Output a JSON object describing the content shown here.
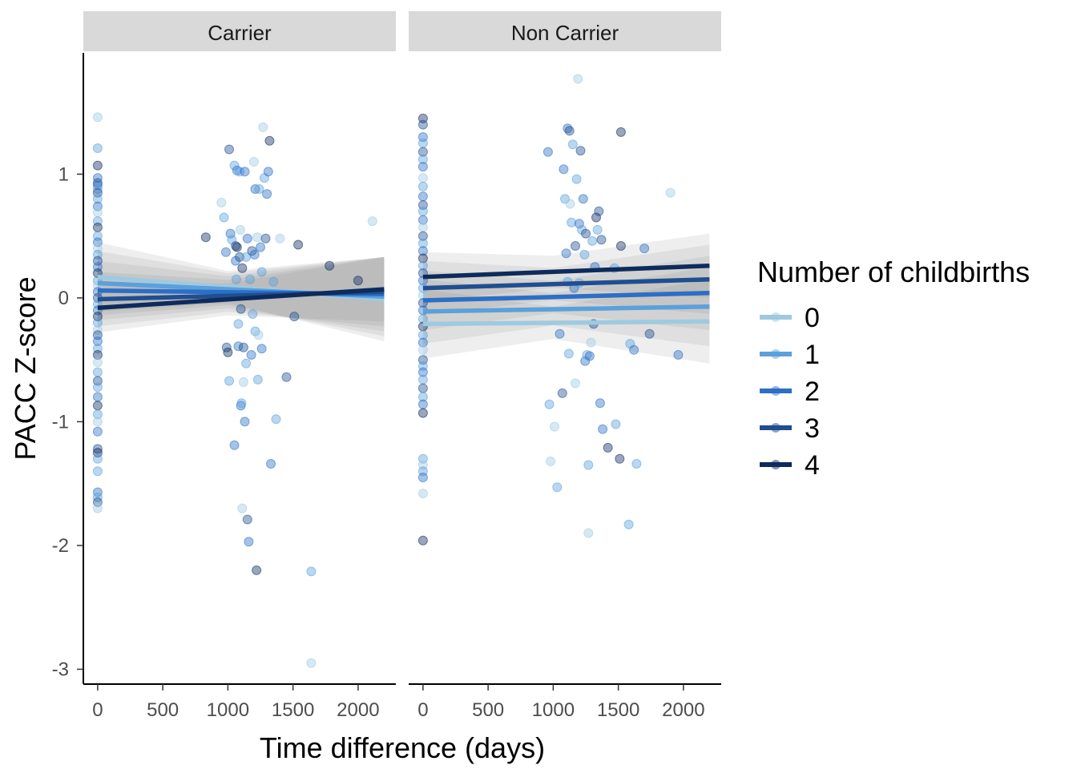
{
  "chart_data": {
    "type": "scatter",
    "xlabel": "Time difference (days)",
    "ylabel": "PACC Z-score",
    "xlim": [
      -110,
      2290
    ],
    "ylim": [
      -3.12,
      1.98
    ],
    "x_ticks": [
      0,
      500,
      1000,
      1500,
      2000
    ],
    "y_ticks": [
      1,
      0,
      -1,
      -2,
      -3
    ],
    "x_tick_labels": [
      "0",
      "500",
      "1000",
      "1500",
      "2000"
    ],
    "y_tick_labels": [
      "1",
      "0",
      "-1",
      "-2",
      "-3"
    ],
    "grid": false,
    "legend": {
      "title": "Number of childbirths",
      "position": "right",
      "entries": [
        "0",
        "1",
        "2",
        "3",
        "4"
      ]
    },
    "colors": [
      "#9ecae1",
      "#5aa0dc",
      "#2b6fc6",
      "#1f4e91",
      "#0d2b5c"
    ],
    "facets": [
      {
        "label": "Carrier",
        "lines": [
          {
            "group": "0",
            "x0": 0,
            "y0": 0.17,
            "x1": 2200,
            "y1": -0.01
          },
          {
            "group": "1",
            "x0": 0,
            "y0": 0.12,
            "x1": 2200,
            "y1": 0.01
          },
          {
            "group": "2",
            "x0": 0,
            "y0": 0.06,
            "x1": 2200,
            "y1": 0.03
          },
          {
            "group": "3",
            "x0": 0,
            "y0": -0.01,
            "x1": 2200,
            "y1": 0.05
          },
          {
            "group": "4",
            "x0": 0,
            "y0": -0.08,
            "x1": 2200,
            "y1": 0.07
          }
        ],
        "points": [
          [
            0,
            1.46,
            0
          ],
          [
            0,
            1.21,
            1
          ],
          [
            0,
            1.07,
            4
          ],
          [
            0,
            0.97,
            2
          ],
          [
            0,
            0.93,
            3
          ],
          [
            0,
            0.91,
            2
          ],
          [
            0,
            0.88,
            1
          ],
          [
            0,
            0.85,
            3
          ],
          [
            0,
            0.8,
            1
          ],
          [
            0,
            0.74,
            2
          ],
          [
            0,
            0.69,
            0
          ],
          [
            0,
            0.62,
            1
          ],
          [
            0,
            0.57,
            4
          ],
          [
            0,
            0.5,
            1
          ],
          [
            0,
            0.45,
            2
          ],
          [
            0,
            0.4,
            0
          ],
          [
            0,
            0.35,
            1
          ],
          [
            0,
            0.3,
            3
          ],
          [
            0,
            0.25,
            2
          ],
          [
            0,
            0.2,
            4
          ],
          [
            0,
            0.14,
            1
          ],
          [
            0,
            0.1,
            0
          ],
          [
            0,
            0.05,
            2
          ],
          [
            0,
            0.0,
            3
          ],
          [
            0,
            -0.05,
            1
          ],
          [
            0,
            -0.1,
            2
          ],
          [
            0,
            -0.15,
            4
          ],
          [
            0,
            -0.2,
            1
          ],
          [
            0,
            -0.26,
            0
          ],
          [
            0,
            -0.3,
            3
          ],
          [
            0,
            -0.35,
            2
          ],
          [
            0,
            -0.41,
            1
          ],
          [
            0,
            -0.46,
            4
          ],
          [
            0,
            -0.52,
            0
          ],
          [
            0,
            -0.6,
            1
          ],
          [
            0,
            -0.67,
            3
          ],
          [
            0,
            -0.72,
            1
          ],
          [
            0,
            -0.8,
            2
          ],
          [
            0,
            -0.87,
            4
          ],
          [
            0,
            -0.94,
            1
          ],
          [
            0,
            -1.0,
            0
          ],
          [
            0,
            -1.08,
            2
          ],
          [
            0,
            -1.22,
            3
          ],
          [
            0,
            -1.25,
            4
          ],
          [
            0,
            -1.3,
            1
          ],
          [
            0,
            -1.4,
            1
          ],
          [
            0,
            -1.57,
            2
          ],
          [
            0,
            -1.61,
            1
          ],
          [
            0,
            -1.65,
            3
          ],
          [
            0,
            -1.7,
            0
          ],
          [
            830,
            0.49,
            4
          ],
          [
            950,
            0.77,
            0
          ],
          [
            970,
            0.65,
            1
          ],
          [
            985,
            0.37,
            2
          ],
          [
            990,
            -0.4,
            3
          ],
          [
            1000,
            -0.44,
            4
          ],
          [
            1010,
            -0.67,
            1
          ],
          [
            1010,
            1.2,
            3
          ],
          [
            1020,
            0.52,
            2
          ],
          [
            1030,
            0.47,
            1
          ],
          [
            1050,
            1.07,
            1
          ],
          [
            1050,
            -1.19,
            2
          ],
          [
            1060,
            0.42,
            3
          ],
          [
            1060,
            0.3,
            2
          ],
          [
            1065,
            0.15,
            1
          ],
          [
            1070,
            1.03,
            2
          ],
          [
            1070,
            0.41,
            4
          ],
          [
            1080,
            -0.39,
            2
          ],
          [
            1080,
            -0.21,
            1
          ],
          [
            1090,
            1.02,
            1
          ],
          [
            1090,
            0.33,
            3
          ],
          [
            1095,
            0.55,
            0
          ],
          [
            1100,
            -0.87,
            2
          ],
          [
            1100,
            -0.09,
            3
          ],
          [
            1105,
            -0.85,
            1
          ],
          [
            1110,
            -1.7,
            0
          ],
          [
            1110,
            0.24,
            4
          ],
          [
            1120,
            -0.68,
            0
          ],
          [
            1120,
            -0.4,
            3
          ],
          [
            1130,
            1.02,
            2
          ],
          [
            1130,
            -1.0,
            2
          ],
          [
            1140,
            0.33,
            1
          ],
          [
            1140,
            -0.53,
            1
          ],
          [
            1150,
            -1.79,
            3
          ],
          [
            1150,
            0.48,
            2
          ],
          [
            1160,
            -1.97,
            2
          ],
          [
            1170,
            0.15,
            1
          ],
          [
            1180,
            -0.46,
            2
          ],
          [
            1185,
            0.38,
            3
          ],
          [
            1190,
            -0.13,
            1
          ],
          [
            1200,
            1.1,
            0
          ],
          [
            1205,
            0.35,
            2
          ],
          [
            1210,
            -0.27,
            1
          ],
          [
            1210,
            0.88,
            2
          ],
          [
            1220,
            -2.2,
            4
          ],
          [
            1225,
            0.49,
            0
          ],
          [
            1230,
            -0.66,
            1
          ],
          [
            1235,
            -0.3,
            0
          ],
          [
            1240,
            0.88,
            1
          ],
          [
            1250,
            0.41,
            2
          ],
          [
            1260,
            0.21,
            1
          ],
          [
            1260,
            -0.41,
            2
          ],
          [
            1270,
            1.38,
            0
          ],
          [
            1280,
            0.97,
            1
          ],
          [
            1290,
            0.48,
            3
          ],
          [
            1300,
            0.84,
            2
          ],
          [
            1310,
            1.02,
            2
          ],
          [
            1320,
            1.27,
            4
          ],
          [
            1330,
            -1.34,
            2
          ],
          [
            1350,
            0.13,
            1
          ],
          [
            1370,
            -0.98,
            1
          ],
          [
            1400,
            0.48,
            0
          ],
          [
            1450,
            -0.64,
            3
          ],
          [
            1510,
            -0.15,
            3
          ],
          [
            1540,
            0.43,
            4
          ],
          [
            1640,
            -2.21,
            1
          ],
          [
            1640,
            -2.95,
            0
          ],
          [
            1780,
            0.26,
            4
          ],
          [
            2000,
            0.14,
            4
          ],
          [
            2110,
            0.62,
            0
          ]
        ]
      },
      {
        "label": "Non Carrier",
        "lines": [
          {
            "group": "0",
            "x0": 0,
            "y0": -0.21,
            "x1": 2200,
            "y1": -0.19
          },
          {
            "group": "1",
            "x0": 0,
            "y0": -0.11,
            "x1": 2200,
            "y1": -0.07
          },
          {
            "group": "2",
            "x0": 0,
            "y0": -0.02,
            "x1": 2200,
            "y1": 0.04
          },
          {
            "group": "3",
            "x0": 0,
            "y0": 0.08,
            "x1": 2200,
            "y1": 0.15
          },
          {
            "group": "4",
            "x0": 0,
            "y0": 0.17,
            "x1": 2200,
            "y1": 0.26
          }
        ],
        "points": [
          [
            0,
            1.45,
            4
          ],
          [
            0,
            1.4,
            3
          ],
          [
            0,
            1.3,
            2
          ],
          [
            0,
            1.25,
            1
          ],
          [
            0,
            1.18,
            3
          ],
          [
            0,
            1.12,
            1
          ],
          [
            0,
            1.06,
            2
          ],
          [
            0,
            0.97,
            0
          ],
          [
            0,
            0.9,
            1
          ],
          [
            0,
            0.82,
            2
          ],
          [
            0,
            0.75,
            3
          ],
          [
            0,
            0.7,
            1
          ],
          [
            0,
            0.63,
            2
          ],
          [
            0,
            0.57,
            0
          ],
          [
            0,
            0.5,
            3
          ],
          [
            0,
            0.44,
            1
          ],
          [
            0,
            0.38,
            2
          ],
          [
            0,
            0.32,
            4
          ],
          [
            0,
            0.26,
            1
          ],
          [
            0,
            0.2,
            3
          ],
          [
            0,
            0.14,
            2
          ],
          [
            0,
            0.08,
            1
          ],
          [
            0,
            0.02,
            0
          ],
          [
            0,
            -0.04,
            3
          ],
          [
            0,
            -0.1,
            2
          ],
          [
            0,
            -0.17,
            1
          ],
          [
            0,
            -0.23,
            4
          ],
          [
            0,
            -0.3,
            1
          ],
          [
            0,
            -0.36,
            2
          ],
          [
            0,
            -0.42,
            0
          ],
          [
            0,
            -0.5,
            3
          ],
          [
            0,
            -0.55,
            1
          ],
          [
            0,
            -0.6,
            2
          ],
          [
            0,
            -0.66,
            1
          ],
          [
            0,
            -0.73,
            3
          ],
          [
            0,
            -0.8,
            1
          ],
          [
            0,
            -0.86,
            2
          ],
          [
            0,
            -0.93,
            4
          ],
          [
            0,
            -1.3,
            1
          ],
          [
            0,
            -1.35,
            0
          ],
          [
            0,
            -1.4,
            1
          ],
          [
            0,
            -1.45,
            2
          ],
          [
            0,
            -1.58,
            0
          ],
          [
            0,
            -1.96,
            4
          ],
          [
            960,
            1.18,
            2
          ],
          [
            970,
            -0.86,
            1
          ],
          [
            980,
            -1.32,
            0
          ],
          [
            1010,
            -1.04,
            0
          ],
          [
            1030,
            -1.53,
            1
          ],
          [
            1050,
            -0.29,
            2
          ],
          [
            1070,
            -0.77,
            3
          ],
          [
            1080,
            1.04,
            2
          ],
          [
            1090,
            0.8,
            1
          ],
          [
            1100,
            0.36,
            2
          ],
          [
            1110,
            0.13,
            1
          ],
          [
            1110,
            1.37,
            2
          ],
          [
            1120,
            -0.45,
            1
          ],
          [
            1125,
            1.35,
            3
          ],
          [
            1130,
            0.76,
            0
          ],
          [
            1140,
            0.61,
            1
          ],
          [
            1150,
            1.24,
            1
          ],
          [
            1160,
            0.08,
            2
          ],
          [
            1170,
            0.42,
            3
          ],
          [
            1170,
            -0.69,
            0
          ],
          [
            1180,
            0.96,
            1
          ],
          [
            1190,
            1.77,
            0
          ],
          [
            1200,
            0.6,
            2
          ],
          [
            1200,
            0.12,
            1
          ],
          [
            1210,
            1.19,
            3
          ],
          [
            1220,
            0.55,
            1
          ],
          [
            1230,
            0.8,
            2
          ],
          [
            1240,
            0.35,
            1
          ],
          [
            1245,
            -0.51,
            2
          ],
          [
            1250,
            0.52,
            3
          ],
          [
            1260,
            -0.46,
            1
          ],
          [
            1270,
            -1.35,
            1
          ],
          [
            1270,
            -1.9,
            0
          ],
          [
            1280,
            -0.47,
            2
          ],
          [
            1290,
            -0.36,
            0
          ],
          [
            1300,
            0.46,
            1
          ],
          [
            1310,
            -0.21,
            3
          ],
          [
            1320,
            0.25,
            2
          ],
          [
            1330,
            0.65,
            4
          ],
          [
            1340,
            0.55,
            1
          ],
          [
            1350,
            0.7,
            3
          ],
          [
            1360,
            -0.85,
            2
          ],
          [
            1370,
            0.47,
            3
          ],
          [
            1380,
            -1.06,
            2
          ],
          [
            1420,
            -1.21,
            4
          ],
          [
            1470,
            0.24,
            1
          ],
          [
            1480,
            -1.02,
            1
          ],
          [
            1510,
            -1.3,
            4
          ],
          [
            1520,
            0.42,
            4
          ],
          [
            1520,
            1.34,
            4
          ],
          [
            1580,
            -1.83,
            1
          ],
          [
            1590,
            -0.37,
            1
          ],
          [
            1620,
            -0.42,
            2
          ],
          [
            1640,
            -1.34,
            1
          ],
          [
            1700,
            0.4,
            2
          ],
          [
            1740,
            -0.29,
            3
          ],
          [
            1900,
            0.85,
            0
          ],
          [
            1960,
            -0.46,
            2
          ]
        ]
      }
    ]
  }
}
